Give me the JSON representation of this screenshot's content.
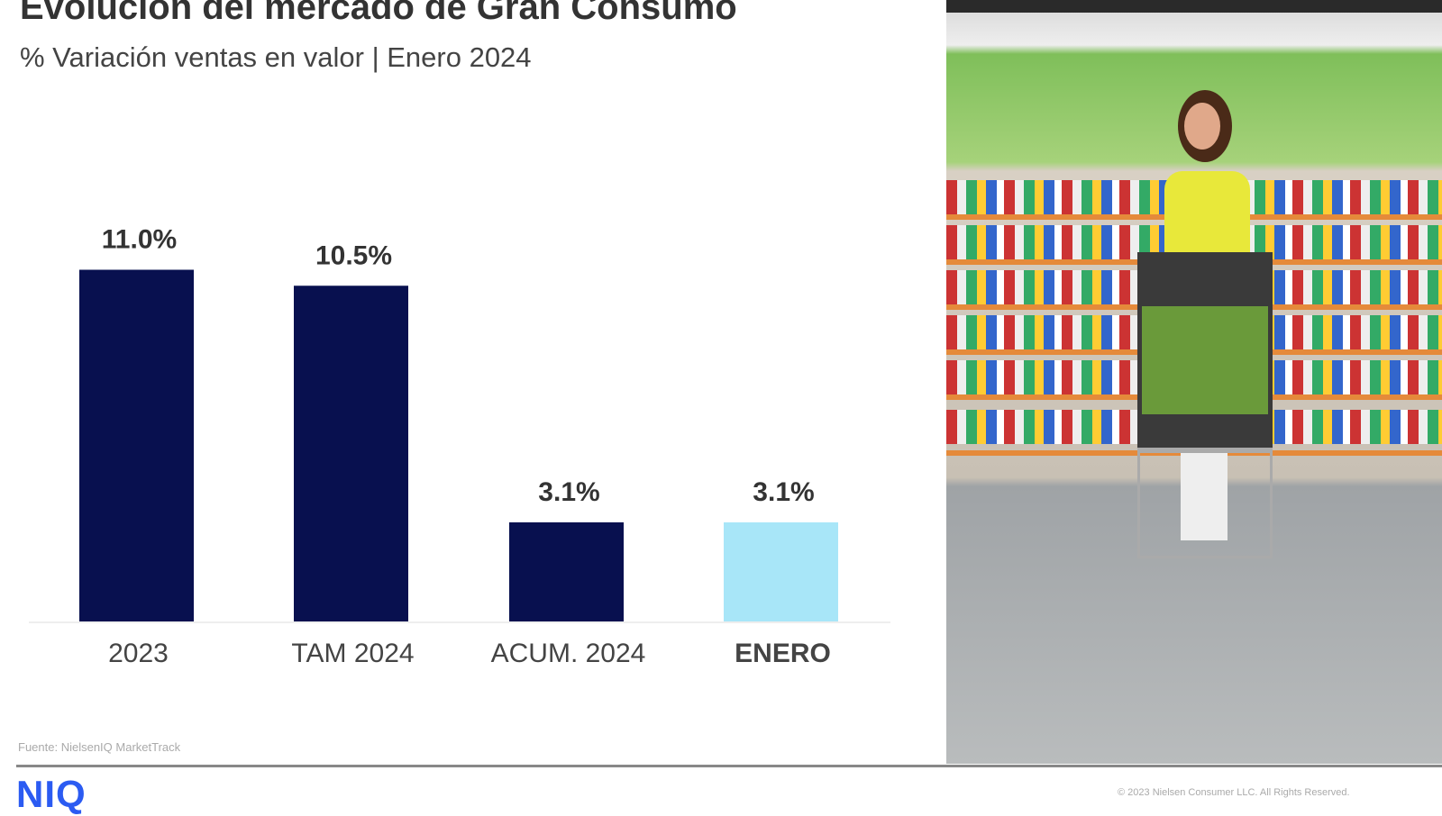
{
  "header": {
    "title": "Evolución del mercado de Gran Consumo",
    "subtitle": "% Variación ventas en valor | Enero 2024"
  },
  "chart_data": {
    "type": "bar",
    "title": "Evolución del mercado de Gran Consumo",
    "subtitle": "% Variación ventas en valor | Enero 2024",
    "categories": [
      "2023",
      "TAM 2024",
      "ACUM. 2024",
      "ENERO"
    ],
    "values": [
      11.0,
      10.5,
      3.1,
      3.1
    ],
    "labels": [
      "11.0%",
      "10.5%",
      "3.1%",
      "3.1%"
    ],
    "colors": [
      "#08104f",
      "#08104f",
      "#08104f",
      "#a8e6f8"
    ],
    "ylim": [
      0,
      12
    ],
    "grid": false,
    "xlabel": "",
    "ylabel": ""
  },
  "footer": {
    "source": "Fuente: NielsenIQ MarketTrack",
    "logo": "NIQ",
    "copyright": "© 2023 Nielsen Consumer LLC. All Rights Reserved."
  }
}
